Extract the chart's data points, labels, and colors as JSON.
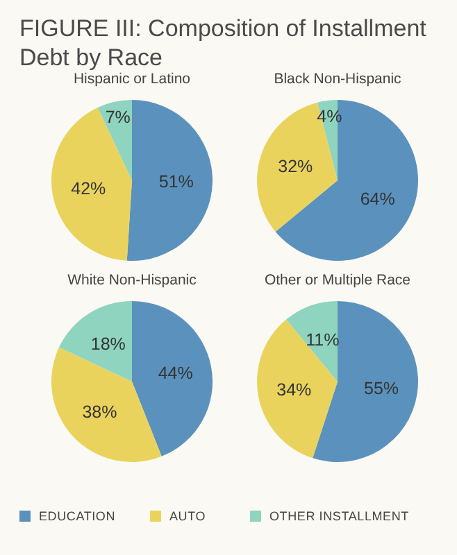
{
  "chart_data": [
    {
      "type": "pie",
      "title": "FIGURE III: Composition of Installment Debt by Race",
      "subtitle": "Hispanic or Latino",
      "categories": [
        null,
        null,
        null
      ],
      "values": [
        51,
        42,
        7
      ],
      "value_labels": [
        "51%",
        "42%",
        "7%"
      ],
      "colors": [
        "#5b92bd",
        "#ead35d",
        "#8ed4bf"
      ]
    },
    {
      "type": "pie",
      "subtitle": "Black Non-Hispanic",
      "categories": [
        null,
        null,
        null
      ],
      "values": [
        64,
        32,
        4
      ],
      "value_labels": [
        "64%",
        "32%",
        "4%"
      ],
      "colors": [
        "#5b92bd",
        "#ead35d",
        "#8ed4bf"
      ]
    },
    {
      "type": "pie",
      "subtitle": "White Non-Hispanic",
      "categories": [
        null,
        null,
        null
      ],
      "values": [
        44,
        38,
        18
      ],
      "value_labels": [
        "44%",
        "38%",
        "18%"
      ],
      "colors": [
        "#5b92bd",
        "#ead35d",
        "#8ed4bf"
      ]
    },
    {
      "type": "pie",
      "subtitle": "Other or Multiple Race",
      "categories": [
        "EDUCATION",
        "AUTO",
        "OTHER INSTALLMENT"
      ],
      "values": [
        55,
        34,
        11
      ],
      "value_labels": [
        "55%",
        "34%",
        "11%"
      ],
      "colors": [
        "#5b92bd",
        "#ead35d",
        "#8ed4bf"
      ],
      "legend": "bottom"
    }
  ]
}
